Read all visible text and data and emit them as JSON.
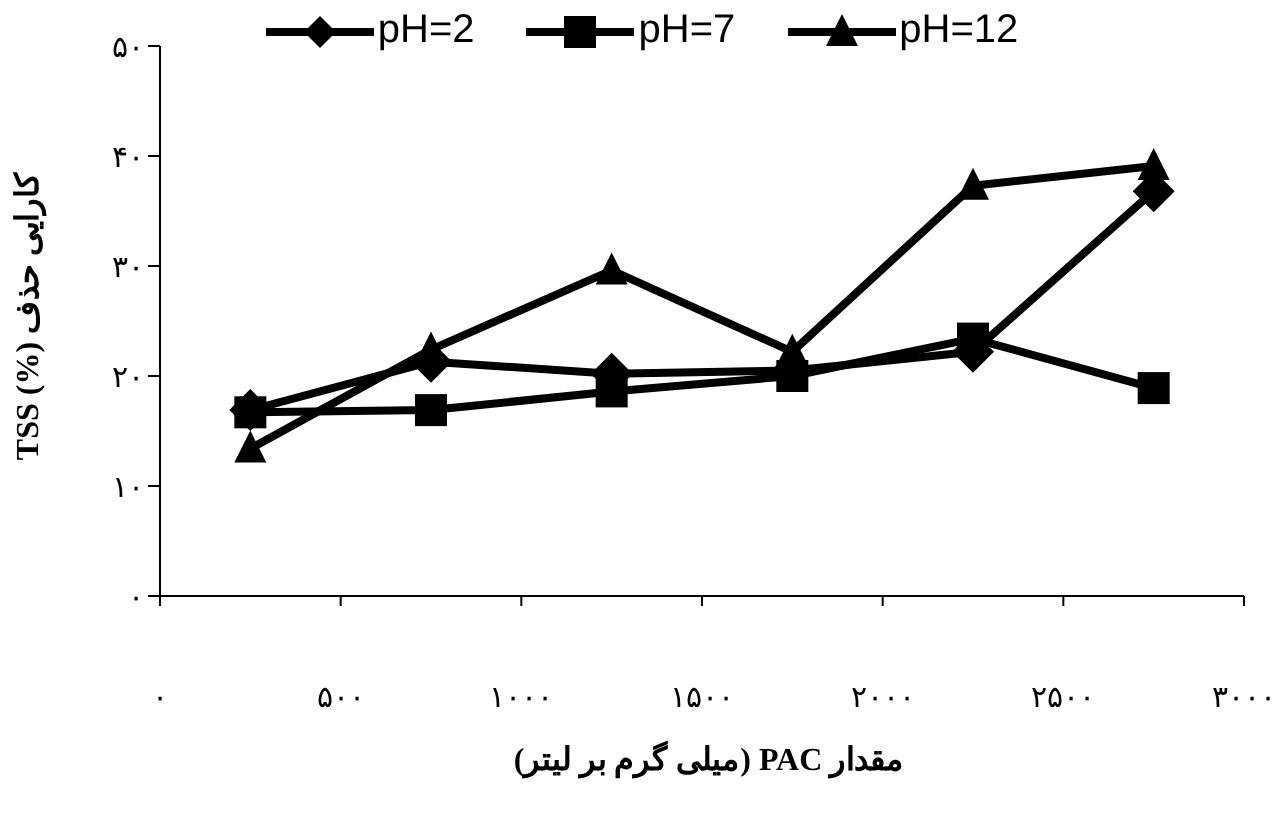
{
  "chart_data": {
    "type": "line",
    "xlabel": "مقدار PAC  (میلی گرم بر لیتر)",
    "ylabel": "کارایی حذف (%) TSS",
    "x": [
      250,
      750,
      1250,
      1750,
      2250,
      2750
    ],
    "xlim": [
      0,
      3000
    ],
    "xticks": [
      {
        "value": 0,
        "label": "۰"
      },
      {
        "value": 500,
        "label": "۵۰۰"
      },
      {
        "value": 1000,
        "label": "۱۰۰۰"
      },
      {
        "value": 1500,
        "label": "۱۵۰۰"
      },
      {
        "value": 2000,
        "label": "۲۰۰۰"
      },
      {
        "value": 2500,
        "label": "۲۵۰۰"
      },
      {
        "value": 3000,
        "label": "۳۰۰۰"
      }
    ],
    "ylim": [
      0,
      50
    ],
    "yticks": [
      {
        "value": 0,
        "label": "۰"
      },
      {
        "value": 10,
        "label": "۱۰"
      },
      {
        "value": 20,
        "label": "۲۰"
      },
      {
        "value": 30,
        "label": "۳۰"
      },
      {
        "value": 40,
        "label": "۴۰"
      },
      {
        "value": 50,
        "label": "۵۰"
      }
    ],
    "grid": false,
    "legend": "top",
    "series": [
      {
        "name": "pH=2",
        "color": "#000000",
        "marker": "diamond",
        "values": [
          16.9,
          21.3,
          20.2,
          20.5,
          22.2,
          36.8
        ]
      },
      {
        "name": "pH=7",
        "color": "#000000",
        "marker": "square",
        "values": [
          16.7,
          16.9,
          18.6,
          20.0,
          23.4,
          18.9
        ]
      },
      {
        "name": "pH=12",
        "color": "#000000",
        "marker": "triangle",
        "values": [
          13.4,
          22.4,
          29.6,
          22.2,
          37.3,
          39.1
        ]
      }
    ]
  }
}
